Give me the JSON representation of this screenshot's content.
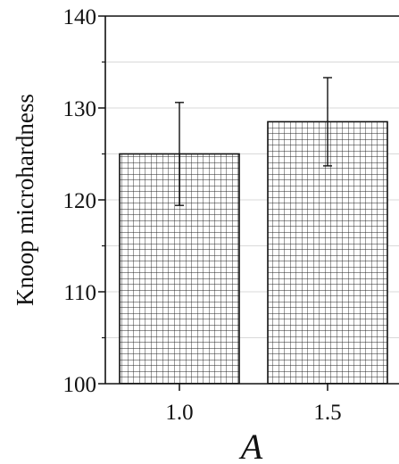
{
  "chart_data": {
    "type": "bar",
    "categories": [
      "1.0",
      "1.5"
    ],
    "values": [
      125.0,
      128.5
    ],
    "errors": [
      5.6,
      4.8
    ],
    "xlabel": "A",
    "ylabel": "Knoop microhardness",
    "ylim": [
      100,
      140
    ],
    "yticks": [
      "100",
      "110",
      "120",
      "130",
      "140"
    ],
    "grid": true,
    "bar_fill": "crosshatch-grid",
    "colors": {
      "bar_stroke": "#111111",
      "axis": "#111111",
      "grid": "#d9d9d9"
    }
  }
}
